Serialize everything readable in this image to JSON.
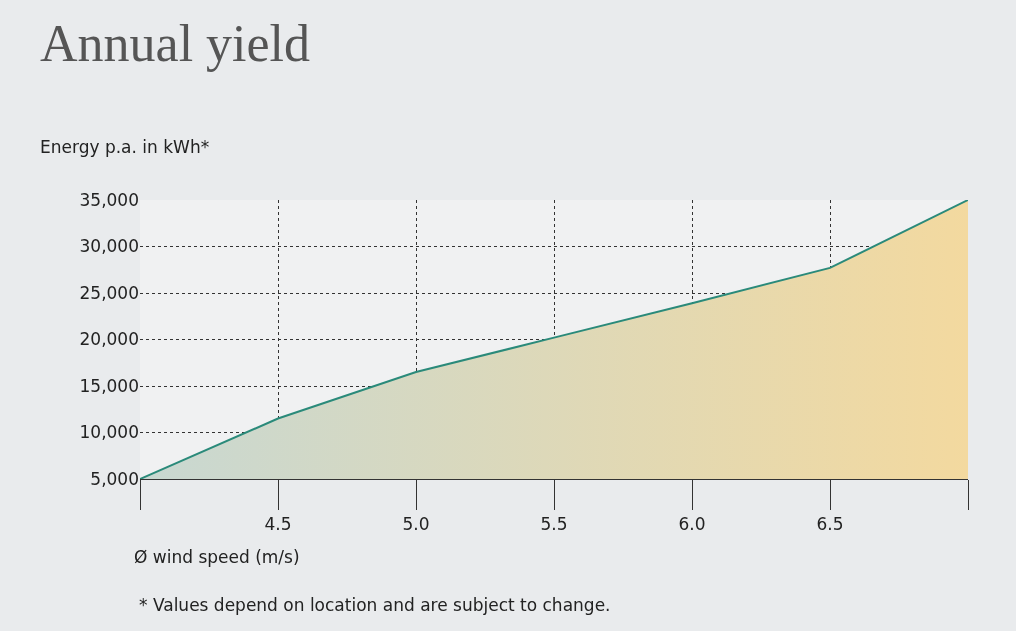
{
  "chart_data": {
    "type": "area",
    "title": "Annual yield",
    "ylabel": "Energy p.a. in kWh*",
    "xlabel": "Ø wind speed (m/s)",
    "annotations": [
      "* Values depend on location and are subject to change."
    ],
    "x": [
      4.0,
      4.5,
      5.0,
      5.5,
      6.0,
      6.5,
      7.0
    ],
    "series": [
      {
        "color": "#2a8a7a",
        "values": [
          5000,
          11500,
          16500,
          20200,
          23900,
          27700,
          35000
        ]
      }
    ],
    "xlim": [
      4.0,
      7.0
    ],
    "xticks": [
      {
        "value": 4.0,
        "label": null
      },
      {
        "value": 4.5,
        "label": "4.5"
      },
      {
        "value": 5.0,
        "label": "5.0"
      },
      {
        "value": 5.5,
        "label": "5.5"
      },
      {
        "value": 6.0,
        "label": "6.0"
      },
      {
        "value": 6.5,
        "label": "6.5"
      },
      {
        "value": 7.0,
        "label": null
      }
    ],
    "ylim": [
      5000,
      35000
    ],
    "yticks": [
      {
        "value": 5000,
        "label": "5,000"
      },
      {
        "value": 10000,
        "label": "10,000"
      },
      {
        "value": 15000,
        "label": "15,000"
      },
      {
        "value": 20000,
        "label": "20,000"
      },
      {
        "value": 25000,
        "label": "25,000"
      },
      {
        "value": 30000,
        "label": "30,000"
      },
      {
        "value": 35000,
        "label": "35,000"
      }
    ],
    "grid": true
  }
}
